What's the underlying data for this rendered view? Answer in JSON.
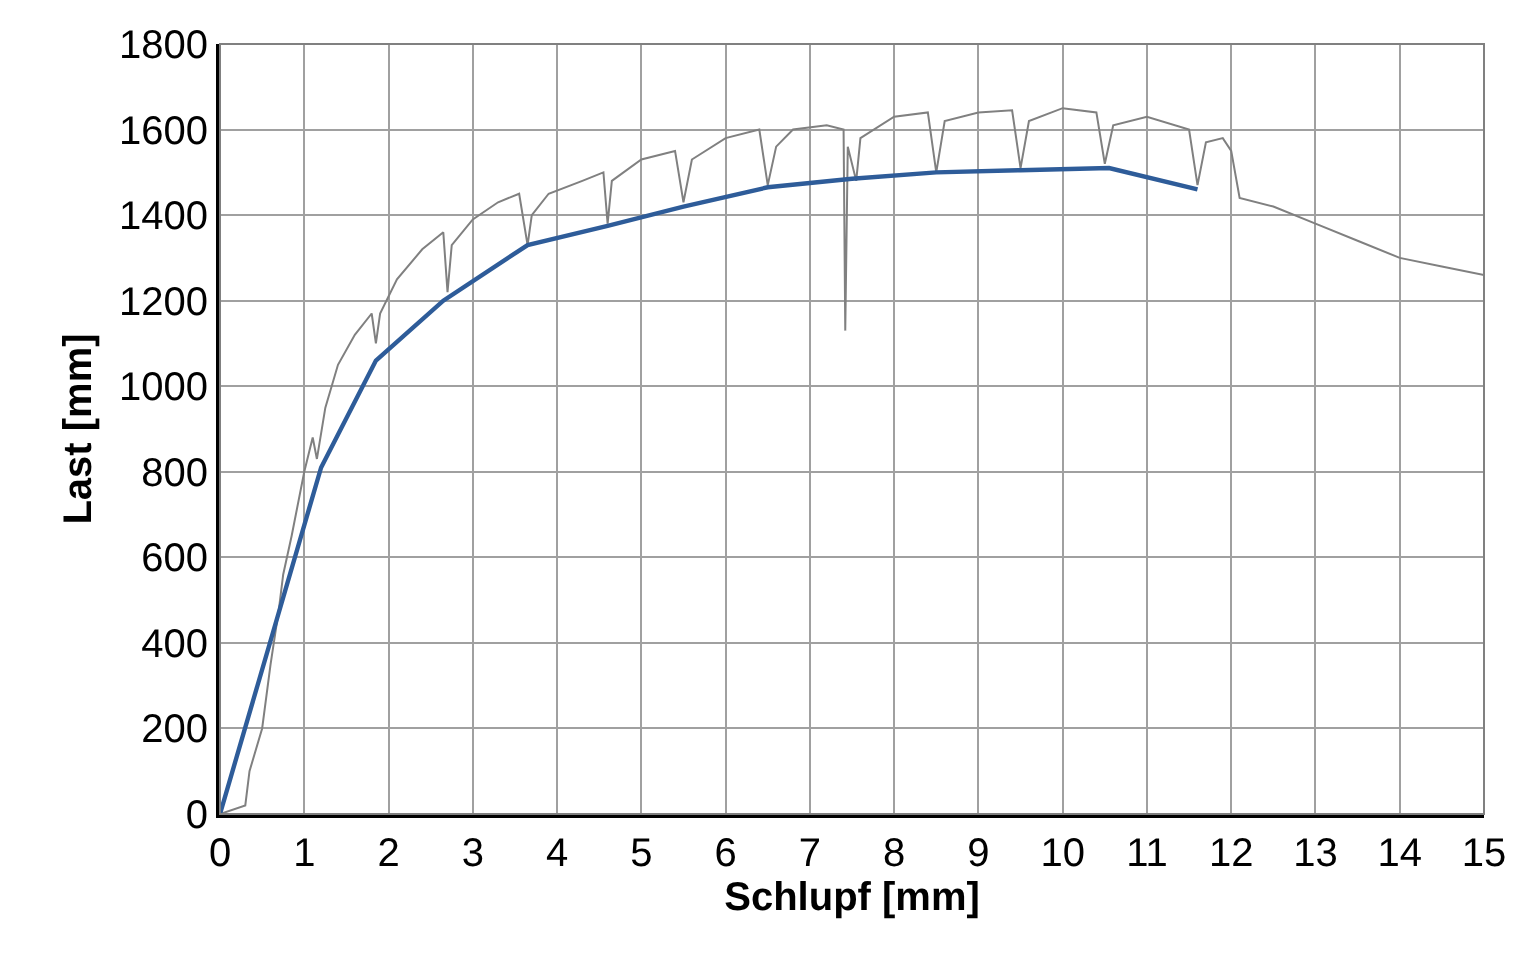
{
  "chart_data": {
    "type": "line",
    "xlabel": "Schlupf [mm]",
    "ylabel": "Last [mm]",
    "xlim": [
      0,
      15
    ],
    "ylim": [
      0,
      1800
    ],
    "xticks": [
      0,
      1,
      2,
      3,
      4,
      5,
      6,
      7,
      8,
      9,
      10,
      11,
      12,
      13,
      14,
      15
    ],
    "yticks": [
      0,
      200,
      400,
      600,
      800,
      1000,
      1200,
      1400,
      1600,
      1800
    ],
    "grid": true,
    "marker": "none",
    "line_style": "solid",
    "series": [
      {
        "color": "#808080",
        "x": [
          0,
          0.3,
          0.35,
          0.5,
          0.6,
          0.7,
          0.75,
          0.85,
          1.0,
          1.1,
          1.15,
          1.25,
          1.4,
          1.6,
          1.8,
          1.85,
          1.9,
          2.1,
          2.4,
          2.65,
          2.7,
          2.75,
          3.0,
          3.3,
          3.55,
          3.65,
          3.7,
          3.9,
          4.3,
          4.55,
          4.6,
          4.65,
          5.0,
          5.4,
          5.5,
          5.6,
          6.0,
          6.4,
          6.5,
          6.6,
          6.8,
          7.2,
          7.4,
          7.42,
          7.45,
          7.55,
          7.6,
          8.0,
          8.4,
          8.5,
          8.6,
          9.0,
          9.4,
          9.5,
          9.6,
          10.0,
          10.4,
          10.5,
          10.6,
          11.0,
          11.5,
          11.6,
          11.7,
          11.9,
          12.0,
          12.1,
          12.5,
          13.0,
          13.5,
          14.0,
          14.5,
          15.0
        ],
        "values": [
          0,
          20,
          100,
          200,
          350,
          480,
          560,
          650,
          800,
          880,
          830,
          950,
          1050,
          1120,
          1170,
          1100,
          1170,
          1250,
          1320,
          1360,
          1220,
          1330,
          1390,
          1430,
          1450,
          1330,
          1400,
          1450,
          1480,
          1500,
          1380,
          1480,
          1530,
          1550,
          1430,
          1530,
          1580,
          1600,
          1470,
          1560,
          1600,
          1610,
          1600,
          1130,
          1560,
          1480,
          1580,
          1630,
          1640,
          1500,
          1620,
          1640,
          1645,
          1510,
          1620,
          1650,
          1640,
          1520,
          1610,
          1630,
          1600,
          1470,
          1570,
          1580,
          1550,
          1440,
          1420,
          1380,
          1340,
          1300,
          1280,
          1260
        ]
      },
      {
        "color": "#2e5c99",
        "x": [
          0,
          1.2,
          1.85,
          2.65,
          3.65,
          4.6,
          5.5,
          6.5,
          7.5,
          8.5,
          9.5,
          10.55,
          11.6
        ],
        "values": [
          0,
          810,
          1060,
          1200,
          1330,
          1375,
          1420,
          1465,
          1485,
          1500,
          1505,
          1510,
          1460
        ]
      }
    ]
  }
}
